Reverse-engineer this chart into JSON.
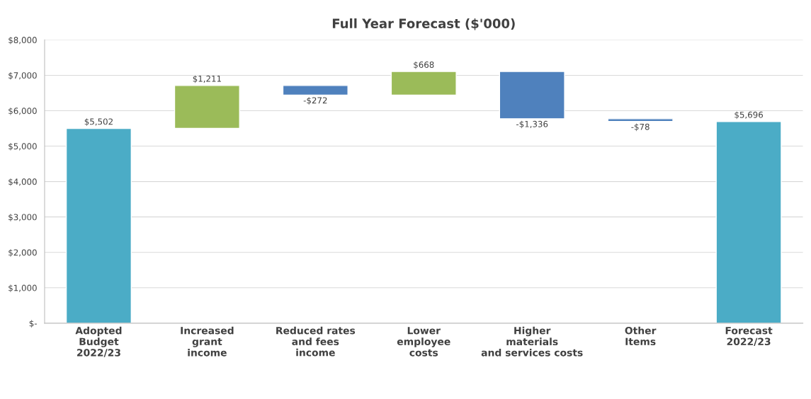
{
  "chart_data": {
    "type": "bar",
    "title": "Full Year Forecast ($'000)",
    "categories": [
      "Adopted\nBudget\n2022/23",
      "Increased\ngrant\nincome",
      "Reduced rates\nand fees\nincome",
      "Lower\nemployee\ncosts",
      "Higher\nmaterials\nand services costs",
      "Other\nItems",
      "Forecast\n2022/23"
    ],
    "values": [
      5502,
      1211,
      -272,
      668,
      -1336,
      -78,
      5696
    ],
    "base": [
      0,
      5502,
      6713,
      6441,
      7109,
      5773,
      0
    ],
    "colors": [
      "#4bacc6",
      "#9bbb59",
      "#4f81bd",
      "#9bbb59",
      "#4f81bd",
      "#4f81bd",
      "#4bacc6"
    ],
    "value_labels": [
      "$5,502",
      "$1,211",
      "-$272",
      "$668",
      "-$1,336",
      "-$78",
      "$5,696"
    ],
    "ylim": [
      0,
      8000
    ],
    "yticks": [
      {
        "value": 0,
        "label": "$-"
      },
      {
        "value": 1000,
        "label": "$1,000"
      },
      {
        "value": 2000,
        "label": "$2,000"
      },
      {
        "value": 3000,
        "label": "$3,000"
      },
      {
        "value": 4000,
        "label": "$4,000"
      },
      {
        "value": 5000,
        "label": "$5,000"
      },
      {
        "value": 6000,
        "label": "$6,000"
      },
      {
        "value": 7000,
        "label": "$7,000"
      },
      {
        "value": 8000,
        "label": "$8,000"
      }
    ],
    "grid": "y"
  }
}
